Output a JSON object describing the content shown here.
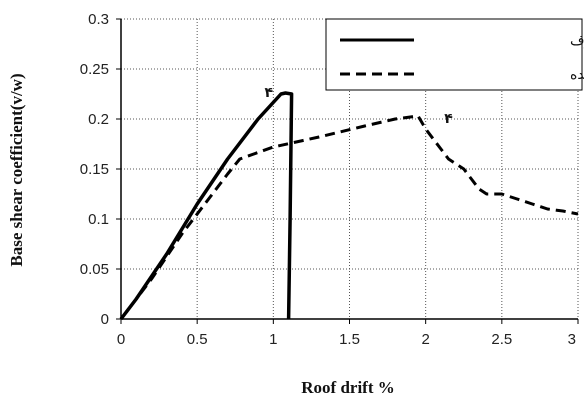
{
  "chart_data": {
    "type": "line",
    "xlabel": "Roof drift %",
    "ylabel": "Base shear coefficient(v/w)",
    "xlim": [
      0,
      3
    ],
    "ylim": [
      0,
      0.3
    ],
    "xticks": [
      0,
      0.5,
      1,
      1.5,
      2,
      2.5,
      3
    ],
    "yticks": [
      0,
      0.05,
      0.1,
      0.15,
      0.2,
      0.25,
      0.3
    ],
    "xtick_labels": [
      "0",
      "0.5",
      "1",
      "1.5",
      "2",
      "2.5",
      "3"
    ],
    "ytick_labels": [
      "0",
      "0.05",
      "0.1",
      "0.15",
      "0.2",
      "0.25",
      "0.3"
    ],
    "grid": "dotted",
    "legend_position": "top-right",
    "series": [
      {
        "name": "طراحی متعارف",
        "style": "solid",
        "color": "#000000",
        "x": [
          0,
          0.1,
          0.3,
          0.5,
          0.7,
          0.9,
          1.05,
          1.08,
          1.12,
          1.11,
          1.1
        ],
        "y": [
          0,
          0.02,
          0.065,
          0.115,
          0.16,
          0.2,
          0.225,
          0.226,
          0.225,
          0.1,
          0
        ]
      },
      {
        "name": "بازطراحی شده",
        "style": "dashed",
        "color": "#000000",
        "x": [
          0,
          0.2,
          0.4,
          0.55,
          0.7,
          0.78,
          1.0,
          1.3,
          1.6,
          1.8,
          1.95,
          2.0,
          2.05,
          2.1,
          2.15,
          2.2,
          2.25,
          2.3,
          2.35,
          2.4,
          2.5,
          2.6,
          2.7,
          2.8,
          2.9,
          3.0
        ],
        "y": [
          0,
          0.04,
          0.085,
          0.115,
          0.145,
          0.16,
          0.172,
          0.182,
          0.193,
          0.2,
          0.203,
          0.19,
          0.18,
          0.17,
          0.16,
          0.155,
          0.15,
          0.14,
          0.13,
          0.125,
          0.125,
          0.12,
          0.115,
          0.11,
          0.108,
          0.105
        ]
      }
    ],
    "annotations": [
      {
        "text": "۴",
        "x": 0.97,
        "y": 0.222
      },
      {
        "text": "۴",
        "x": 2.15,
        "y": 0.196
      }
    ]
  }
}
